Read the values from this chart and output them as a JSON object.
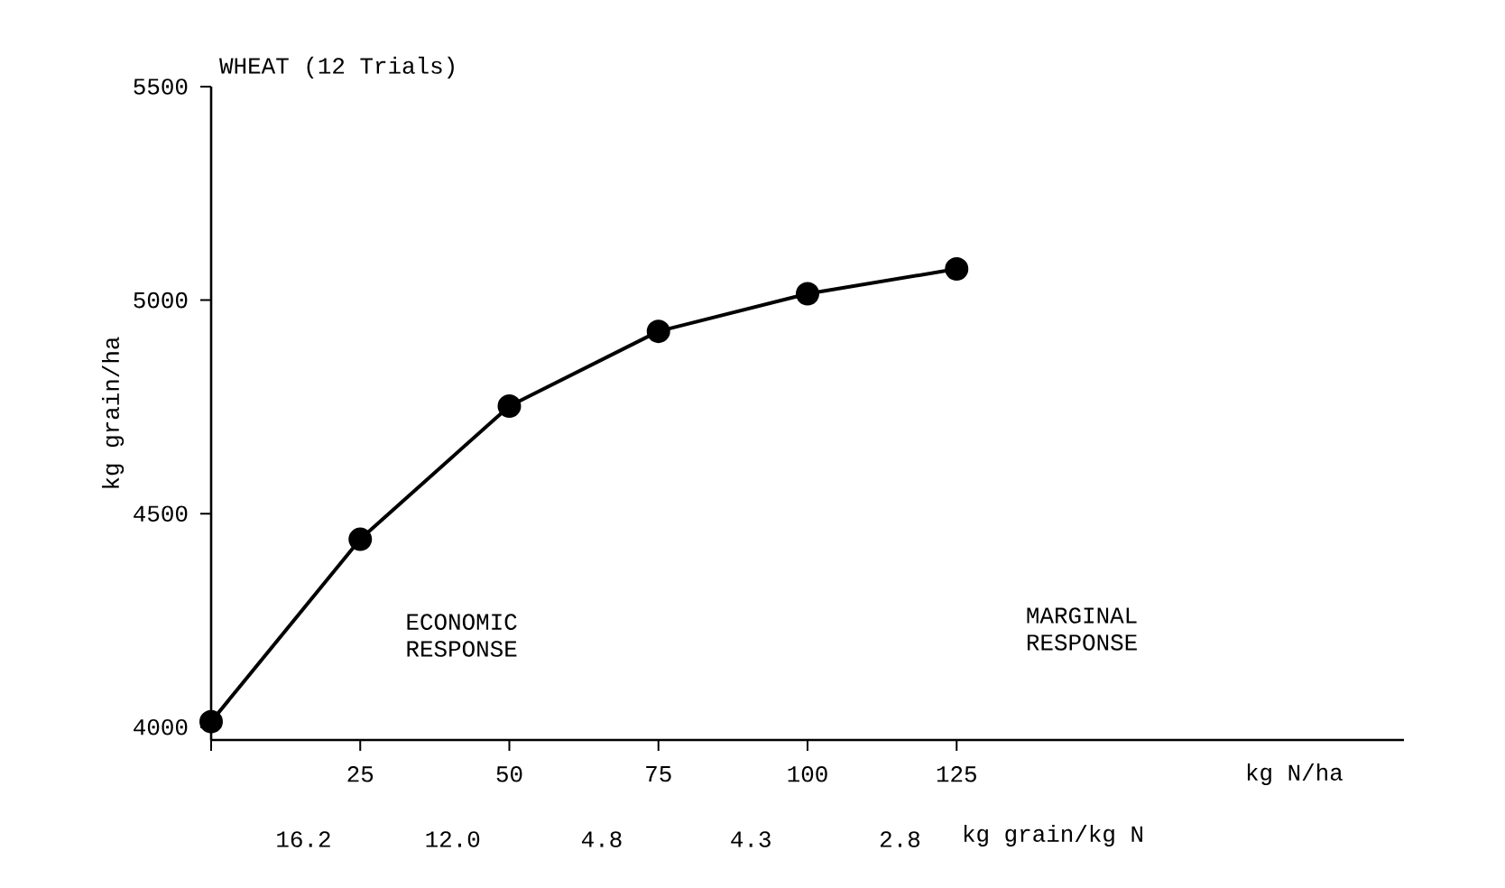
{
  "chart_data": {
    "type": "line",
    "title": "WHEAT (12 Trials)",
    "xlabel": "kg N/ha",
    "ylabel": "kg grain/ha",
    "x": [
      0,
      25,
      50,
      75,
      100,
      125
    ],
    "series": [
      {
        "color": "#000000",
        "values": [
          4013,
          4440,
          4752,
          4927,
          5015,
          5073
        ]
      }
    ],
    "xlim": [
      0,
      200
    ],
    "ylim": [
      3970,
      5500
    ],
    "xticks": [
      {
        "value": 0,
        "label": null
      },
      25,
      50,
      75,
      100,
      125
    ],
    "yticks": [
      4000,
      4500,
      5000,
      5500
    ],
    "marker": "circle",
    "line_style": "solid",
    "grid": false,
    "annotations": [
      "ECONOMIC RESPONSE",
      "MARGINAL RESPONSE",
      "16.2",
      "12.0",
      "4.8",
      "4.3",
      "2.8",
      "kg grain/kg N"
    ]
  }
}
